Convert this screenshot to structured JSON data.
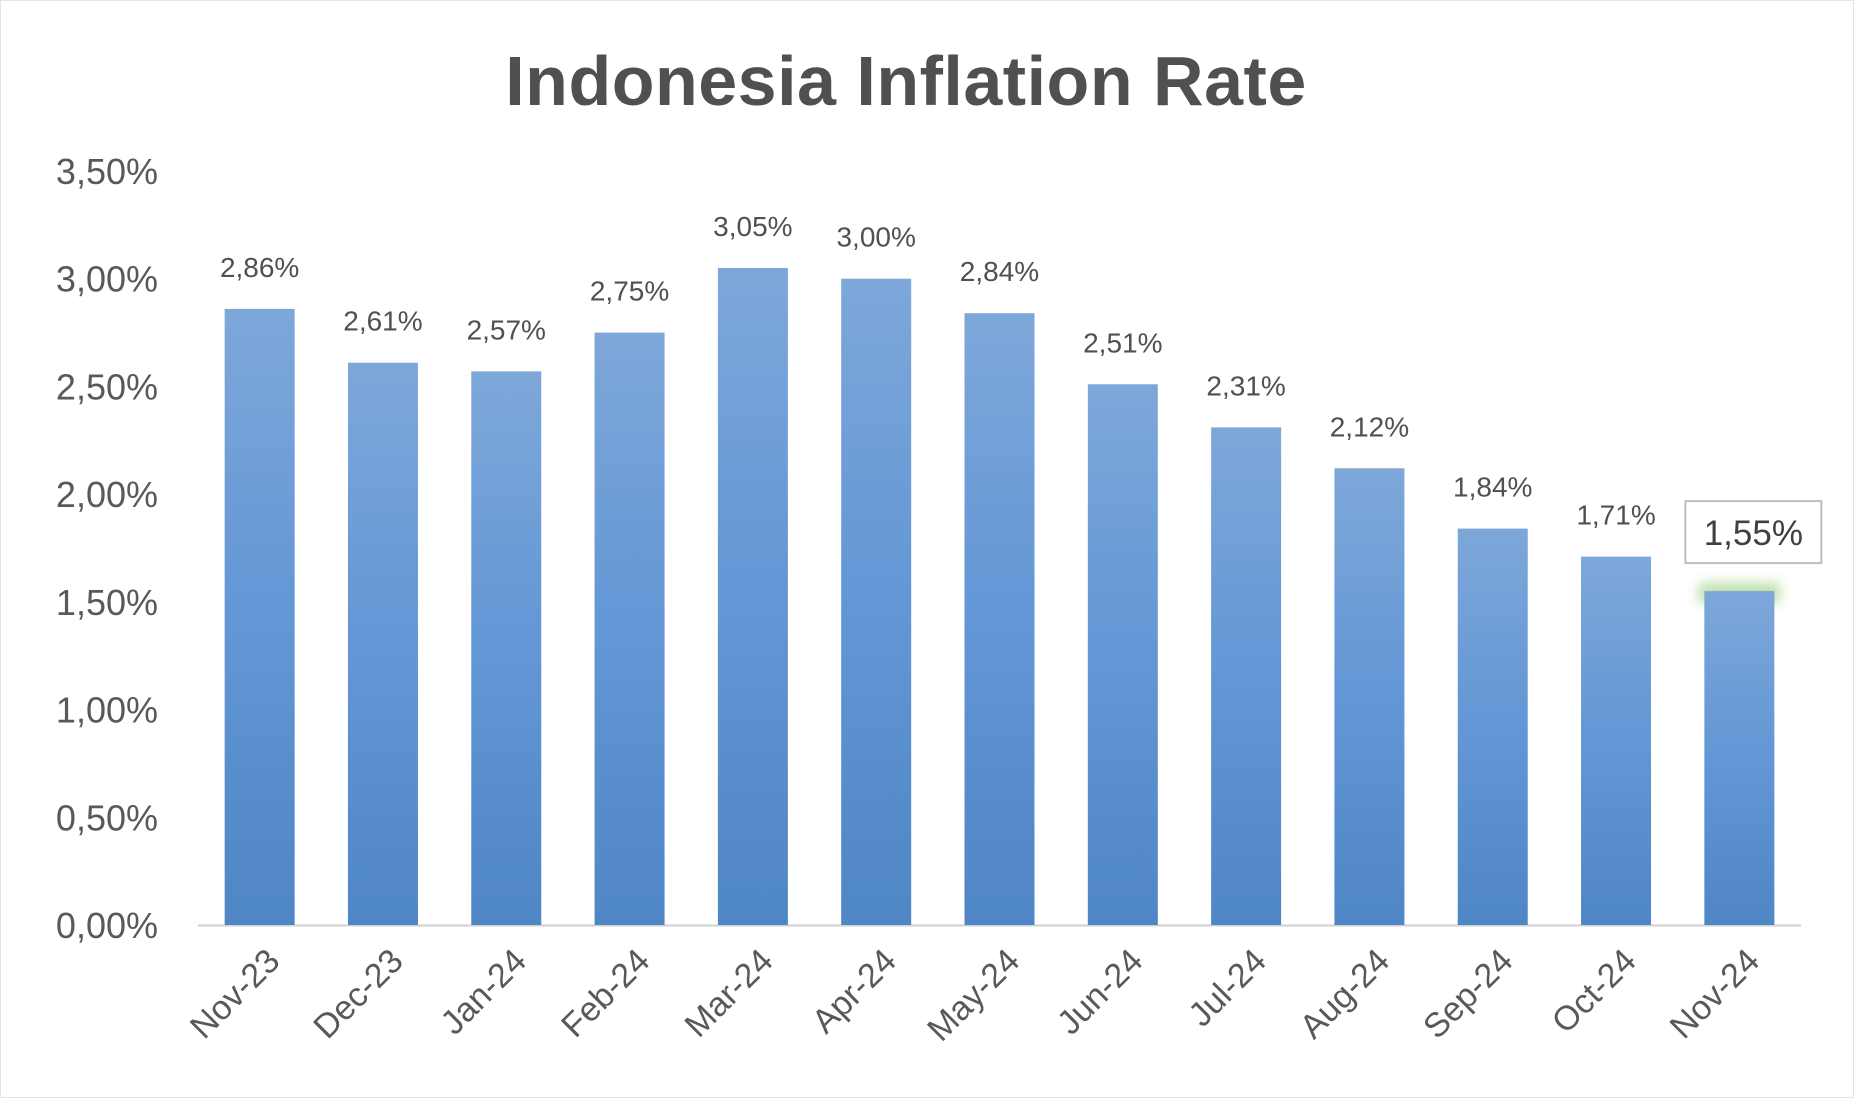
{
  "chart_data": {
    "type": "bar",
    "title": "Indonesia Inflation Rate",
    "xlabel": "",
    "ylabel": "",
    "categories": [
      "Nov-23",
      "Dec-23",
      "Jan-24",
      "Feb-24",
      "Mar-24",
      "Apr-24",
      "May-24",
      "Jun-24",
      "Jul-24",
      "Aug-24",
      "Sep-24",
      "Oct-24",
      "Nov-24"
    ],
    "values": [
      2.86,
      2.61,
      2.57,
      2.75,
      3.05,
      3.0,
      2.84,
      2.51,
      2.31,
      2.12,
      1.84,
      1.71,
      1.55
    ],
    "data_labels": [
      "2,86%",
      "2,61%",
      "2,57%",
      "2,75%",
      "3,05%",
      "3,00%",
      "2,84%",
      "2,51%",
      "2,31%",
      "2,12%",
      "1,84%",
      "1,71%",
      "1,55%"
    ],
    "y_ticks": [
      0,
      0.5,
      1.0,
      1.5,
      2.0,
      2.5,
      3.0,
      3.5
    ],
    "y_tick_labels": [
      "0,00%",
      "0,50%",
      "1,00%",
      "1,50%",
      "2,00%",
      "2,50%",
      "3,00%",
      "3,50%"
    ],
    "ylim": [
      0,
      3.5
    ],
    "grid": false,
    "legend": "none",
    "highlighted_category": "Nov-24",
    "colors": {
      "bar_top": "#7ea7d9",
      "bar_bottom": "#4f86c6",
      "highlight_glow": "#b5dca0",
      "axis": "#d0d0d0"
    }
  }
}
